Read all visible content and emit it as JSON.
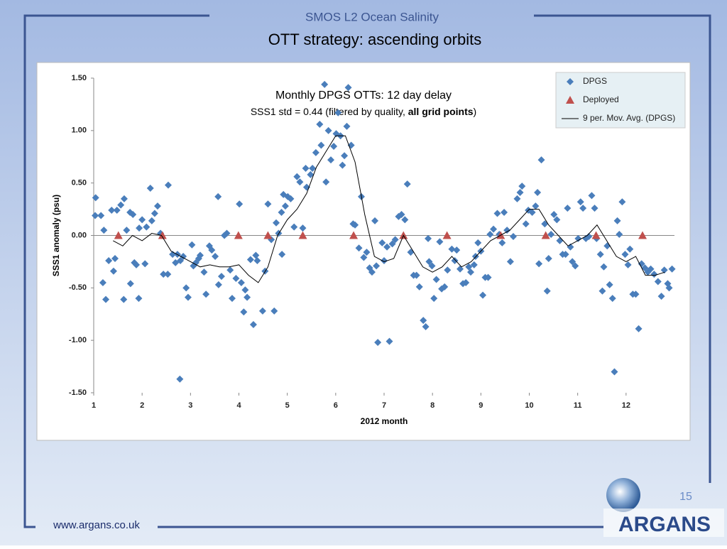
{
  "slide": {
    "header": "SMOS L2 Ocean Salinity",
    "title": "OTT strategy: ascending orbits",
    "footer": "www.argans.co.uk",
    "page_number": "15",
    "logo": "ARGANS"
  },
  "chart_data": {
    "type": "scatter",
    "annotation": [
      "Monthly DPGS OTTs: 12 day delay",
      [
        "SSS1 std = 0.44 (filtered by quality, ",
        "all grid points",
        ")"
      ]
    ],
    "xlabel": "2012 month",
    "ylabel": "SSS1 anomaly (psu)",
    "xlim": [
      1,
      13
    ],
    "xticks": [
      1,
      2,
      3,
      4,
      5,
      6,
      7,
      8,
      9,
      10,
      11,
      12
    ],
    "ylim": [
      -1.5,
      1.5
    ],
    "yticks": [
      {
        "value": 1.5,
        "label": "1.50"
      },
      {
        "value": 1,
        "label": "1.00"
      },
      {
        "value": 0.5,
        "label": "0.50"
      },
      {
        "value": 0,
        "label": "0.00"
      },
      {
        "value": -0.5,
        "label": "-0.50"
      },
      {
        "value": -1,
        "label": "-1.00"
      },
      {
        "value": -1.5,
        "label": "-1.50"
      }
    ],
    "grid": false,
    "legend": "upper right",
    "series": [
      {
        "name": "DPGS",
        "color": "#4a7ebb",
        "marker": "diamond",
        "x": [
          1.04,
          1.03,
          1.15,
          1.21,
          1.19,
          1.25,
          1.31,
          1.37,
          1.41,
          1.48,
          1.44,
          1.56,
          1.63,
          1.62,
          1.68,
          1.75,
          1.81,
          1.76,
          1.84,
          1.88,
          1.93,
          1.94,
          2.0,
          2.06,
          2.09,
          2.17,
          2.2,
          2.26,
          2.32,
          2.38,
          2.44,
          2.53,
          2.54,
          2.63,
          2.69,
          2.73,
          2.79,
          2.85,
          2.78,
          2.91,
          2.95,
          3.03,
          3.06,
          3.11,
          3.17,
          3.2,
          3.28,
          3.32,
          3.39,
          3.44,
          3.51,
          3.57,
          3.58,
          3.64,
          3.7,
          3.75,
          3.82,
          3.86,
          3.94,
          4.01,
          4.05,
          4.1,
          4.13,
          4.17,
          4.24,
          4.3,
          4.35,
          4.38,
          4.49,
          4.54,
          4.6,
          4.67,
          4.73,
          4.77,
          4.82,
          4.88,
          4.89,
          4.92,
          4.96,
          5.01,
          5.07,
          5.14,
          5.2,
          5.26,
          5.32,
          5.38,
          5.4,
          5.48,
          5.52,
          5.59,
          5.67,
          5.7,
          5.77,
          5.8,
          5.85,
          5.9,
          5.96,
          6.01,
          6.05,
          6.1,
          6.14,
          6.18,
          6.23,
          6.26,
          6.32,
          6.36,
          6.4,
          6.48,
          6.53,
          6.58,
          6.64,
          6.7,
          6.75,
          6.81,
          6.84,
          6.87,
          6.96,
          7.0,
          7.06,
          7.11,
          7.17,
          7.23,
          7.3,
          7.36,
          7.43,
          7.48,
          7.55,
          7.61,
          7.67,
          7.73,
          7.81,
          7.86,
          7.91,
          7.93,
          7.99,
          8.03,
          8.08,
          8.15,
          8.19,
          8.25,
          8.31,
          8.4,
          8.46,
          8.5,
          8.57,
          8.63,
          8.69,
          8.75,
          8.79,
          8.86,
          8.89,
          8.94,
          9.0,
          9.04,
          9.09,
          9.15,
          9.19,
          9.26,
          9.34,
          9.38,
          9.44,
          9.48,
          9.54,
          9.61,
          9.67,
          9.75,
          9.81,
          9.85,
          9.93,
          9.98,
          10.06,
          10.13,
          10.17,
          10.2,
          10.25,
          10.32,
          10.37,
          10.4,
          10.45,
          10.51,
          10.57,
          10.63,
          10.69,
          10.75,
          10.79,
          10.85,
          10.89,
          10.95,
          11.01,
          11.06,
          11.11,
          11.17,
          11.23,
          11.29,
          11.35,
          11.39,
          11.47,
          11.51,
          11.54,
          11.61,
          11.66,
          11.72,
          11.76,
          11.82,
          11.86,
          11.92,
          11.98,
          12.04,
          12.08,
          12.14,
          12.2,
          12.26,
          12.32,
          12.39,
          12.45,
          12.51,
          12.58,
          12.66,
          12.73,
          12.79,
          12.86,
          12.89,
          12.95
        ],
        "values": [
          0.36,
          0.19,
          0.19,
          0.05,
          -0.45,
          -0.61,
          -0.24,
          0.24,
          -0.34,
          0.24,
          -0.22,
          0.29,
          0.35,
          -0.61,
          0.05,
          0.22,
          0.2,
          -0.46,
          -0.26,
          -0.28,
          -0.6,
          0.07,
          0.15,
          -0.27,
          0.08,
          0.45,
          0.14,
          0.21,
          0.28,
          0.02,
          -0.37,
          -0.37,
          0.48,
          -0.18,
          -0.26,
          -0.18,
          -0.24,
          -0.2,
          -1.37,
          -0.5,
          -0.59,
          -0.09,
          -0.29,
          -0.26,
          -0.22,
          -0.19,
          -0.35,
          -0.56,
          -0.1,
          -0.14,
          -0.2,
          0.37,
          -0.47,
          -0.39,
          0.0,
          0.02,
          -0.33,
          -0.6,
          -0.41,
          0.3,
          -0.45,
          -0.73,
          -0.52,
          -0.59,
          -0.23,
          -0.85,
          -0.19,
          -0.24,
          -0.72,
          -0.34,
          0.3,
          -0.04,
          -0.72,
          0.12,
          0.02,
          0.22,
          -0.18,
          0.39,
          0.28,
          0.37,
          0.35,
          0.08,
          0.56,
          0.51,
          0.07,
          0.64,
          0.46,
          0.58,
          0.64,
          0.79,
          1.06,
          0.86,
          1.44,
          0.51,
          1.0,
          0.72,
          0.85,
          0.97,
          1.17,
          0.95,
          0.67,
          0.76,
          1.04,
          1.41,
          0.86,
          0.11,
          0.1,
          -0.12,
          0.37,
          -0.21,
          -0.16,
          -0.31,
          -0.35,
          0.14,
          -0.29,
          -1.02,
          -0.07,
          -0.24,
          -0.11,
          -1.01,
          -0.08,
          -0.04,
          0.18,
          0.2,
          0.15,
          0.49,
          -0.16,
          -0.38,
          -0.38,
          -0.49,
          -0.81,
          -0.87,
          -0.03,
          -0.25,
          -0.29,
          -0.6,
          -0.42,
          -0.06,
          -0.51,
          -0.49,
          -0.33,
          -0.13,
          -0.24,
          -0.14,
          -0.32,
          -0.46,
          -0.45,
          -0.3,
          -0.35,
          -0.28,
          -0.2,
          -0.07,
          -0.15,
          -0.57,
          -0.4,
          -0.4,
          0.01,
          0.06,
          0.21,
          0.01,
          -0.07,
          0.22,
          0.05,
          -0.25,
          -0.01,
          0.35,
          0.41,
          0.47,
          0.11,
          0.24,
          0.22,
          0.28,
          0.41,
          -0.27,
          0.72,
          0.11,
          -0.53,
          -0.22,
          0.01,
          0.2,
          0.15,
          -0.05,
          -0.18,
          -0.18,
          0.26,
          -0.11,
          -0.25,
          -0.29,
          -0.03,
          0.32,
          0.26,
          -0.03,
          -0.01,
          0.38,
          0.26,
          -0.03,
          -0.18,
          -0.53,
          -0.3,
          -0.1,
          -0.47,
          -0.6,
          -1.3,
          0.14,
          0.01,
          0.32,
          -0.18,
          -0.28,
          -0.13,
          -0.56,
          -0.56,
          -0.89,
          -0.27,
          -0.31,
          -0.35,
          -0.32,
          -0.37,
          -0.44,
          -0.58,
          -0.33,
          -0.46,
          -0.5,
          -0.32
        ]
      },
      {
        "name": "Deployed",
        "color": "#c0504d",
        "marker": "triangle",
        "x": [
          1.51,
          2.42,
          3.99,
          4.6,
          5.32,
          6.37,
          7.4,
          8.3,
          9.41,
          10.34,
          11.38,
          12.34
        ],
        "values": [
          0,
          0,
          0,
          0,
          0,
          0,
          0,
          0,
          0,
          0,
          0,
          0
        ]
      },
      {
        "name": "9 per. Mov. Avg. (DPGS)",
        "color": "#000000",
        "marker": "line",
        "x": [
          1.4,
          1.6,
          1.8,
          2.0,
          2.2,
          2.4,
          2.6,
          2.8,
          3.0,
          3.2,
          3.4,
          3.6,
          3.8,
          4.0,
          4.2,
          4.4,
          4.6,
          4.8,
          5.0,
          5.2,
          5.4,
          5.6,
          5.8,
          6.0,
          6.2,
          6.4,
          6.6,
          6.8,
          7.0,
          7.2,
          7.4,
          7.6,
          7.8,
          8.0,
          8.2,
          8.4,
          8.6,
          8.8,
          9.0,
          9.2,
          9.4,
          9.6,
          9.8,
          10.0,
          10.2,
          10.4,
          10.6,
          10.8,
          11.0,
          11.2,
          11.4,
          11.6,
          11.8,
          12.0,
          12.2,
          12.4,
          12.6,
          12.8
        ],
        "values": [
          -0.05,
          -0.1,
          0.0,
          -0.05,
          0.02,
          0.0,
          -0.15,
          -0.2,
          -0.25,
          -0.3,
          -0.28,
          -0.3,
          -0.3,
          -0.28,
          -0.38,
          -0.45,
          -0.3,
          0.0,
          0.15,
          0.25,
          0.4,
          0.65,
          0.8,
          0.95,
          0.95,
          0.7,
          0.2,
          -0.2,
          -0.25,
          -0.22,
          0.0,
          -0.15,
          -0.3,
          -0.35,
          -0.3,
          -0.2,
          -0.3,
          -0.25,
          -0.15,
          -0.05,
          0.0,
          0.05,
          0.15,
          0.25,
          0.25,
          0.1,
          0.0,
          -0.1,
          -0.05,
          0.0,
          0.1,
          -0.05,
          -0.2,
          -0.25,
          -0.2,
          -0.38,
          -0.38,
          -0.35
        ]
      }
    ]
  }
}
